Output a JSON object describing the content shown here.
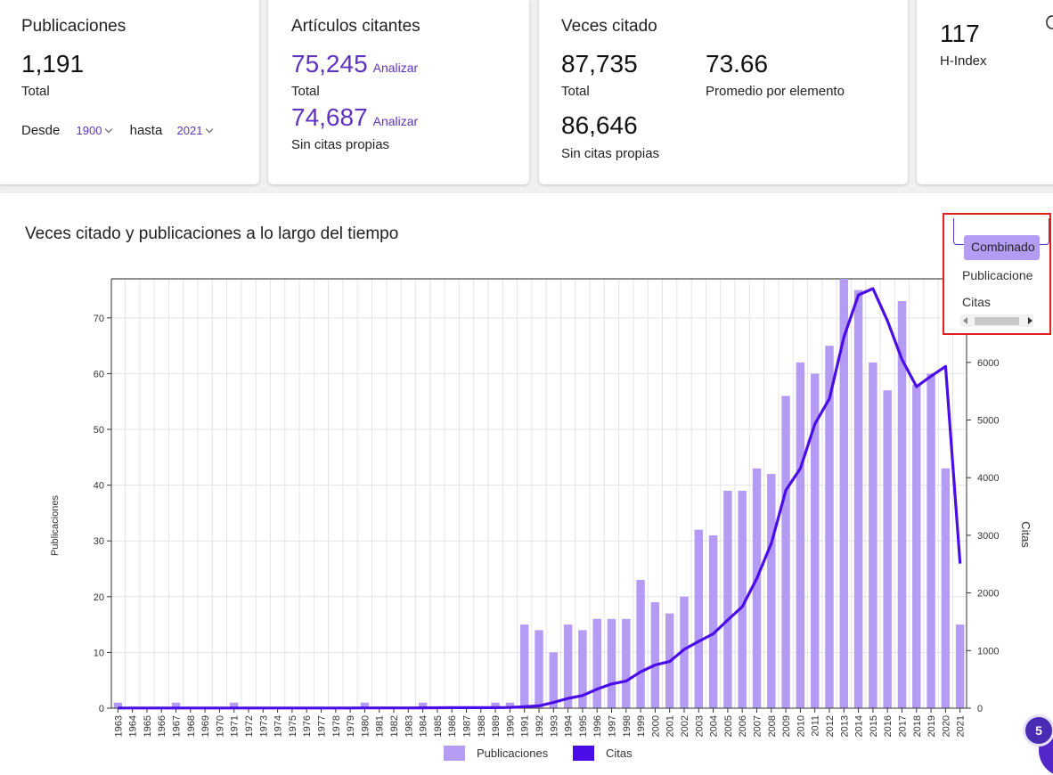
{
  "cards": {
    "publicaciones": {
      "title": "Publicaciones",
      "value": "1,191",
      "caption": "Total",
      "desde_label": "Desde",
      "desde_value": "1900",
      "hasta_label": "hasta",
      "hasta_value": "2021"
    },
    "articulos": {
      "title": "Artículos citantes",
      "total_value": "75,245",
      "total_caption": "Total",
      "sin_value": "74,687",
      "sin_caption": "Sin citas propias",
      "analizar": "Analizar"
    },
    "veces": {
      "title": "Veces citado",
      "total_value": "87,735",
      "total_caption": "Total",
      "promedio_value": "73.66",
      "promedio_caption": "Promedio por elemento",
      "sin_value": "86,646",
      "sin_caption": "Sin citas propias"
    },
    "hindex": {
      "value": "117",
      "caption": "H-Index"
    }
  },
  "chart_section": {
    "title": "Veces citado y publicaciones a lo largo del tiempo"
  },
  "dropdown": {
    "options": [
      "Combinado",
      "Publicacione",
      "Citas"
    ],
    "selected": "Combinado"
  },
  "badge": {
    "count": "5"
  },
  "colors": {
    "accent": "#5e33bf",
    "bar": "#b49cf5",
    "line": "#4a0de8",
    "highlight_border": "#e02020"
  },
  "chart_data": {
    "type": "bar",
    "categories": [
      "1963",
      "1964",
      "1965",
      "1966",
      "1967",
      "1968",
      "1969",
      "1970",
      "1971",
      "1972",
      "1973",
      "1974",
      "1975",
      "1976",
      "1977",
      "1978",
      "1979",
      "1980",
      "1981",
      "1982",
      "1983",
      "1984",
      "1985",
      "1986",
      "1987",
      "1988",
      "1989",
      "1990",
      "1991",
      "1992",
      "1993",
      "1994",
      "1995",
      "1996",
      "1997",
      "1998",
      "1999",
      "2000",
      "2001",
      "2002",
      "2003",
      "2004",
      "2005",
      "2006",
      "2007",
      "2008",
      "2009",
      "2010",
      "2011",
      "2012",
      "2013",
      "2014",
      "2015",
      "2016",
      "2017",
      "2018",
      "2019",
      "2020",
      "2021"
    ],
    "series": [
      {
        "name": "Publicaciones",
        "type": "bar",
        "axis": "left",
        "values": [
          1,
          0,
          0,
          0,
          1,
          0,
          0,
          0,
          1,
          0,
          0,
          0,
          0,
          0,
          0,
          0,
          0,
          1,
          0,
          0,
          0,
          1,
          0,
          0,
          0,
          0,
          1,
          1,
          15,
          14,
          10,
          15,
          14,
          16,
          16,
          16,
          23,
          19,
          17,
          20,
          32,
          31,
          39,
          39,
          43,
          42,
          56,
          62,
          60,
          65,
          77,
          75,
          62,
          57,
          73,
          58,
          60,
          43,
          15
        ]
      },
      {
        "name": "Citas",
        "type": "line",
        "axis": "right",
        "values": [
          3,
          3,
          3,
          3,
          3,
          3,
          3,
          3,
          3,
          3,
          3,
          3,
          3,
          3,
          3,
          3,
          3,
          4,
          5,
          5,
          5,
          6,
          8,
          10,
          10,
          10,
          10,
          12,
          25,
          40,
          100,
          170,
          220,
          330,
          420,
          470,
          630,
          750,
          810,
          1020,
          1160,
          1290,
          1530,
          1760,
          2250,
          2860,
          3780,
          4160,
          4930,
          5370,
          6440,
          7170,
          7280,
          6720,
          6050,
          5580,
          5760,
          5930,
          2510
        ]
      }
    ],
    "xlabel": "",
    "ylabel": "Publicaciones",
    "ylabel_right": "Citas",
    "ylim": [
      0,
      77
    ],
    "ylim_right": [
      0,
      7450
    ],
    "yticks": [
      0,
      10,
      20,
      30,
      40,
      50,
      60,
      70
    ],
    "yticks_right": [
      0,
      1000,
      2000,
      3000,
      4000,
      5000,
      6000
    ],
    "legend": "bottom",
    "grid": true
  }
}
